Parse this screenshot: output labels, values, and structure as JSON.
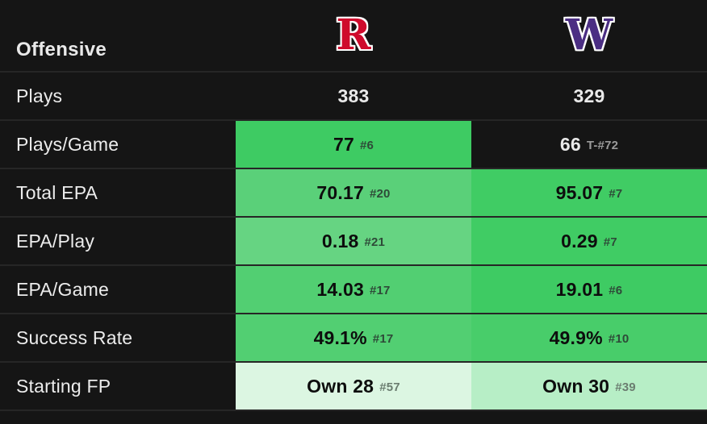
{
  "header": {
    "title": "Offensive",
    "teams": [
      {
        "name": "rutgers",
        "letter": "R",
        "color": "#cf0a2c"
      },
      {
        "name": "washington",
        "letter": "W",
        "color": "#4b2e83"
      }
    ]
  },
  "palette": {
    "background": "#151515",
    "divider": "#262626",
    "text_light": "#e9e9e9",
    "rank_gray": "#9a9a9a"
  },
  "table": {
    "rows": [
      {
        "label": "Plays",
        "cells": [
          {
            "value": "383",
            "rank": "",
            "bg": "transparent",
            "text": "#e9e9e9",
            "rank_color": "#9a9a9a"
          },
          {
            "value": "329",
            "rank": "",
            "bg": "transparent",
            "text": "#e9e9e9",
            "rank_color": "#9a9a9a"
          }
        ]
      },
      {
        "label": "Plays/Game",
        "cells": [
          {
            "value": "77",
            "rank": "#6",
            "bg": "#3ecb63",
            "text": "#0d0d0d",
            "rank_color": "#2e4a38"
          },
          {
            "value": "66",
            "rank": "T-#72",
            "bg": "transparent",
            "text": "#e9e9e9",
            "rank_color": "#9a9a9a"
          }
        ]
      },
      {
        "label": "Total EPA",
        "cells": [
          {
            "value": "70.17",
            "rank": "#20",
            "bg": "#5ad079",
            "text": "#0d0d0d",
            "rank_color": "#2e4a38"
          },
          {
            "value": "95.07",
            "rank": "#7",
            "bg": "#40cc64",
            "text": "#0d0d0d",
            "rank_color": "#2e4a38"
          }
        ]
      },
      {
        "label": "EPA/Play",
        "cells": [
          {
            "value": "0.18",
            "rank": "#21",
            "bg": "#66d482",
            "text": "#0d0d0d",
            "rank_color": "#2e4a38"
          },
          {
            "value": "0.29",
            "rank": "#7",
            "bg": "#40cc64",
            "text": "#0d0d0d",
            "rank_color": "#2e4a38"
          }
        ]
      },
      {
        "label": "EPA/Game",
        "cells": [
          {
            "value": "14.03",
            "rank": "#17",
            "bg": "#52cf72",
            "text": "#0d0d0d",
            "rank_color": "#2e4a38"
          },
          {
            "value": "19.01",
            "rank": "#6",
            "bg": "#3ecb63",
            "text": "#0d0d0d",
            "rank_color": "#2e4a38"
          }
        ]
      },
      {
        "label": "Success Rate",
        "cells": [
          {
            "value": "49.1%",
            "rank": "#17",
            "bg": "#52cf72",
            "text": "#0d0d0d",
            "rank_color": "#2e4a38"
          },
          {
            "value": "49.9%",
            "rank": "#10",
            "bg": "#48cd6a",
            "text": "#0d0d0d",
            "rank_color": "#2e4a38"
          }
        ]
      },
      {
        "label": "Starting FP",
        "cells": [
          {
            "value": "Own 28",
            "rank": "#57",
            "bg": "#dcf6e2",
            "text": "#0d0d0d",
            "rank_color": "#6b7d70"
          },
          {
            "value": "Own 30",
            "rank": "#39",
            "bg": "#b7eec6",
            "text": "#0d0d0d",
            "rank_color": "#6b7d70"
          }
        ]
      }
    ]
  }
}
